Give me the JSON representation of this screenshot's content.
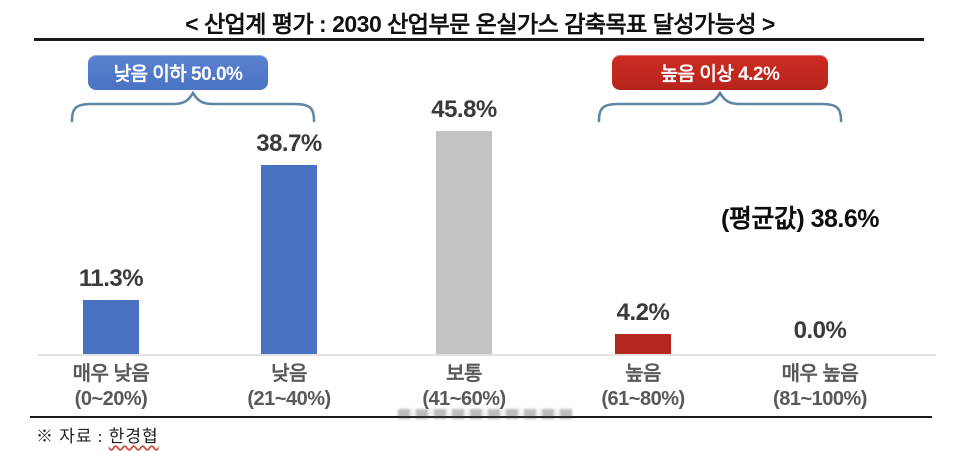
{
  "header": {
    "title": "< 산업계 평가 : 2030 산업부문 온실가스 감축목표 달성가능성 >"
  },
  "footer": {
    "source_prefix": "※ 자료 : ",
    "source_name": "한경협"
  },
  "chart_data": {
    "type": "bar",
    "title": "< 산업계 평가 : 2030 산업부문 온실가스 감축목표 달성가능성 >",
    "categories": [
      "매우 낮음",
      "낮음",
      "보통",
      "높음",
      "매우 높음"
    ],
    "category_sublabels": [
      "(0~20%)",
      "(21~40%)",
      "(41~60%)",
      "(61~80%)",
      "(81~100%)"
    ],
    "values": [
      11.3,
      38.7,
      45.8,
      4.2,
      0.0
    ],
    "data_labels": [
      "11.3%",
      "38.7%",
      "45.8%",
      "4.2%",
      "0.0%"
    ],
    "bar_colors": [
      "#4a72c3",
      "#4a72c3",
      "#c3c3c3",
      "#b3271e",
      "#b3271e"
    ],
    "ylim": [
      0,
      50
    ],
    "grid": false,
    "legend": "none",
    "brace_color": "#5d87a4",
    "groups": [
      {
        "label": "낮음 이하 50.0%",
        "value": 50.0,
        "covers": [
          "매우 낮음",
          "낮음"
        ],
        "color": "#4a73c4"
      },
      {
        "label": "높음 이상 4.2%",
        "value": 4.2,
        "covers": [
          "높음",
          "매우 높음"
        ],
        "color": "#c0241c"
      }
    ],
    "average": {
      "label": "(평균값) 38.6%",
      "value": 38.6
    }
  }
}
